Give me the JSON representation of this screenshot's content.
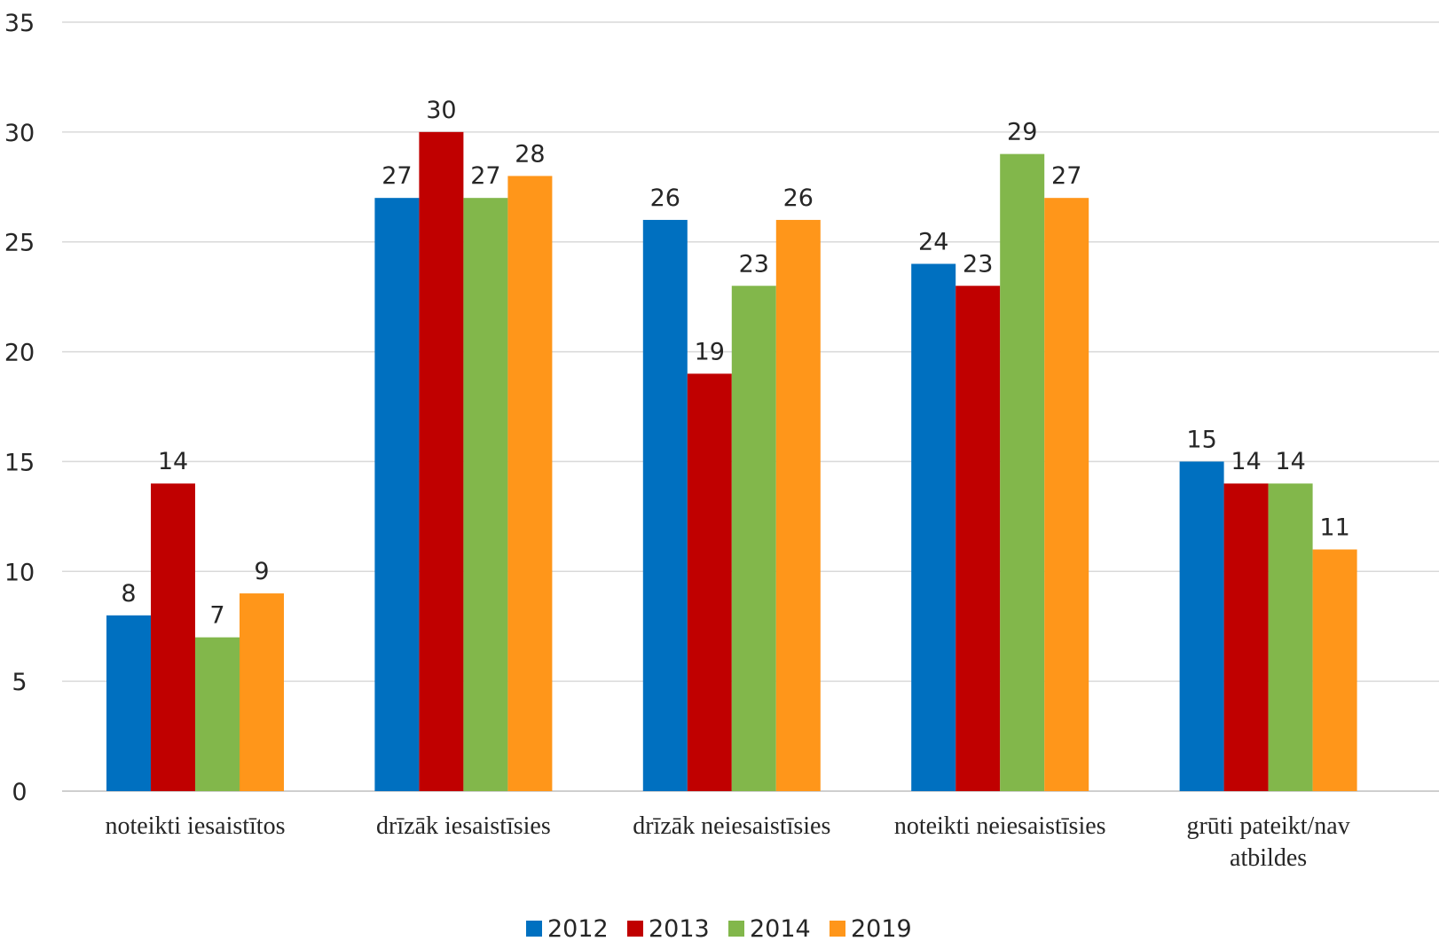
{
  "chart_data": {
    "type": "bar",
    "title": "",
    "xlabel": "",
    "ylabel": "",
    "ylim": [
      0,
      35
    ],
    "yticks": [
      "0",
      "5",
      "10",
      "15",
      "20",
      "25",
      "30",
      "35"
    ],
    "grid": true,
    "legend_position": "bottom",
    "categories": [
      [
        "noteikti iesaistītos"
      ],
      [
        "drīzāk iesaistīsies"
      ],
      [
        "drīzāk neiesaistīsies"
      ],
      [
        "noteikti neiesaistīsies"
      ],
      [
        "grūti pateikt/nav",
        "atbildes"
      ]
    ],
    "series": [
      {
        "name": "2012",
        "color": "#0070c0",
        "values": [
          8,
          27,
          26,
          24,
          15
        ]
      },
      {
        "name": "2013",
        "color": "#c00000",
        "values": [
          14,
          30,
          19,
          23,
          14
        ]
      },
      {
        "name": "2014",
        "color": "#82b74b",
        "values": [
          7,
          27,
          23,
          29,
          14
        ]
      },
      {
        "name": "2019",
        "color": "#ff961a",
        "values": [
          9,
          28,
          26,
          27,
          11
        ]
      }
    ]
  }
}
